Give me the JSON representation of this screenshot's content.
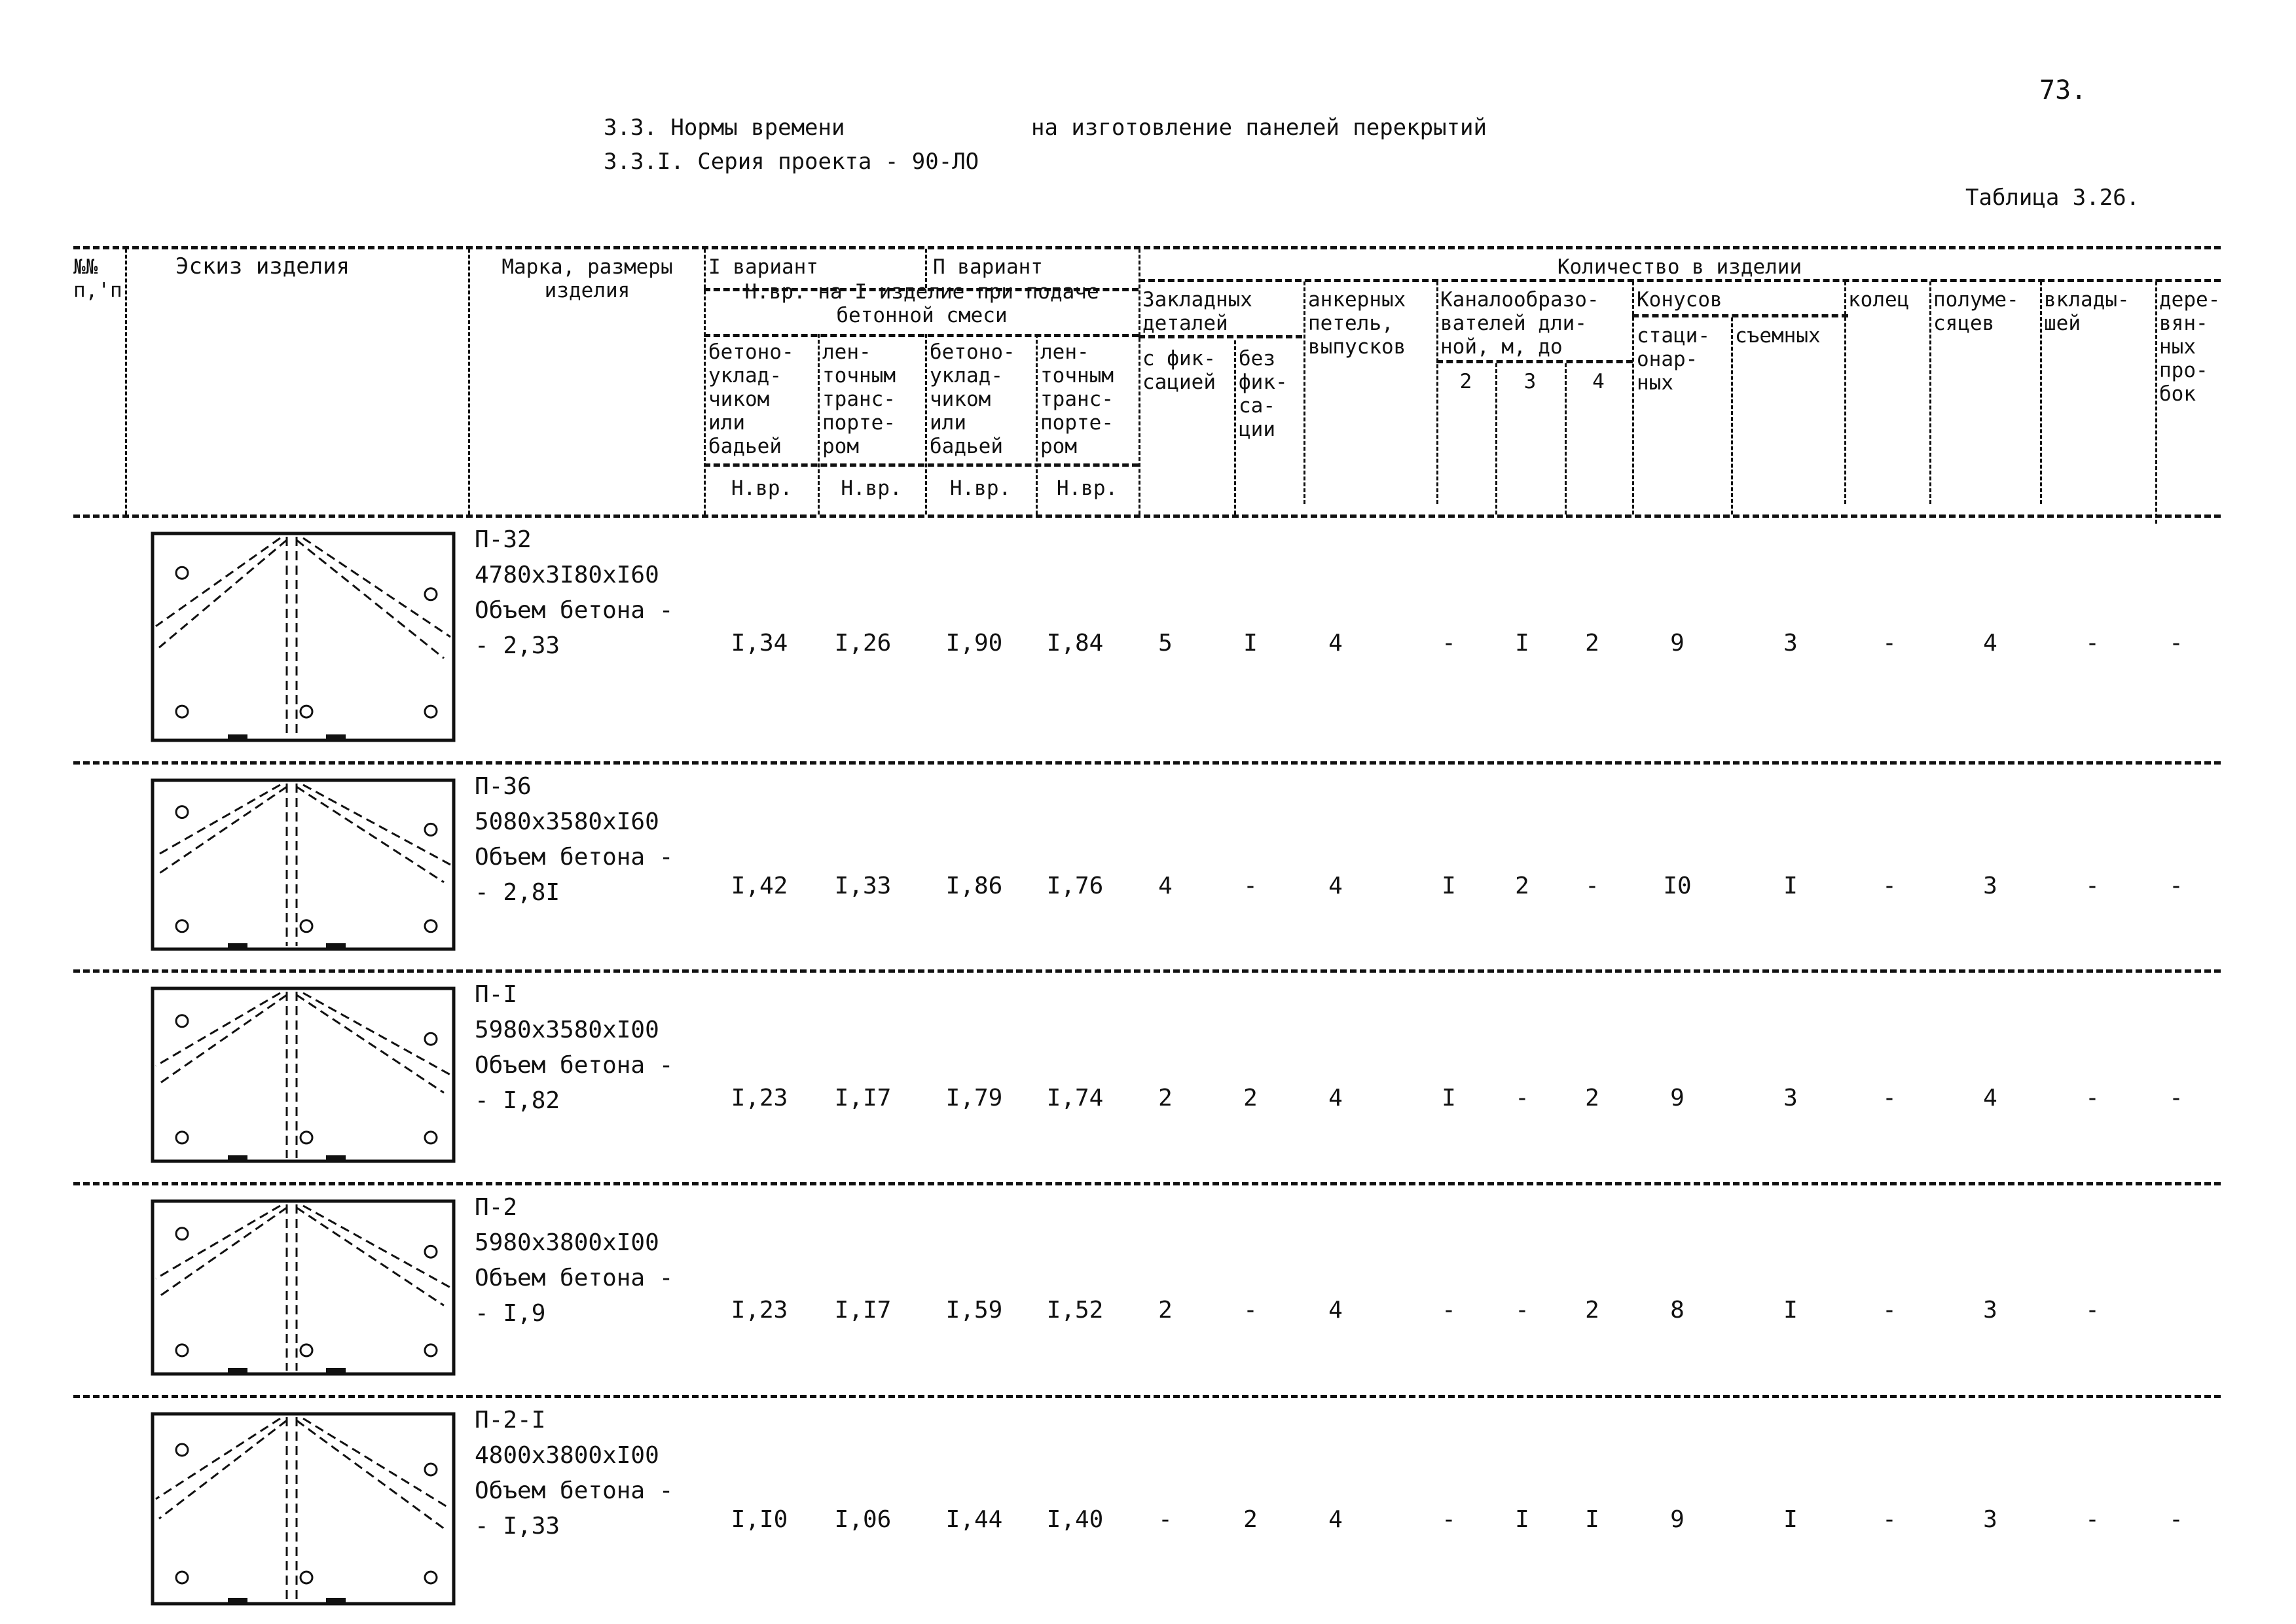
{
  "page_number": "73.",
  "heading": {
    "line1_left": "3.3. Нормы времени",
    "line1_right": "на изготовление панелей перекрытий",
    "line2": "3.3.I. Серия проекта - 90-ЛО"
  },
  "table_label": "Таблица 3.26.",
  "header": {
    "num": [
      "№№",
      "п,'п"
    ],
    "sketch": "Эскиз изделия",
    "mark": [
      "Марка, размеры",
      "изделия"
    ],
    "variant1": "I вариант",
    "variant2": "П вариант",
    "norm_caption": [
      "Н.вр. на I изделие при подаче",
      "бетонной смеси"
    ],
    "sub_cols": [
      [
        "бетоно-",
        "уклад-",
        "чиком",
        "или",
        "бадьей"
      ],
      [
        "лен-",
        "точным",
        "транс-",
        "порте-",
        "ром"
      ],
      [
        "бетоно-",
        "уклад-",
        "чиком",
        "или",
        "бадьей"
      ],
      [
        "лен-",
        "точным",
        "транс-",
        "порте-",
        "ром"
      ]
    ],
    "unit": "Н.вр.",
    "quantity": "Количество в изделии",
    "embedded": [
      "Закладных",
      "деталей"
    ],
    "embedded_fix": [
      "с фик-",
      "сацией"
    ],
    "embedded_nofix": [
      "без",
      "фик-",
      "са-",
      "ции"
    ],
    "anchor": [
      "анкерных",
      "петель,",
      "выпусков"
    ],
    "channel": [
      "Каналообразо-",
      "вателей дли-",
      "ной, м, до"
    ],
    "channel_cols": [
      "2",
      "3",
      "4"
    ],
    "cones": "Конусов",
    "cones_stat": [
      "стаци-",
      "онар-",
      "ных"
    ],
    "cones_rem": [
      "съемных"
    ],
    "rings": [
      "колец"
    ],
    "half": [
      "полуме-",
      "сяцев"
    ],
    "inserts": [
      "вклады-",
      "шей"
    ],
    "wooden": [
      "дере-",
      "вян-",
      "ных",
      "про-",
      "бок"
    ]
  },
  "rows": [
    {
      "mark": "П-32",
      "size": "4780x3I80xI60",
      "vol_label": "Объем бетона -",
      "vol": "- 2,33",
      "values": [
        "I,34",
        "I,26",
        "I,90",
        "I,84",
        "5",
        "I",
        "4",
        "-",
        "I",
        "2",
        "9",
        "3",
        "-",
        "4",
        "-",
        "-"
      ]
    },
    {
      "mark": "П-36",
      "size": "5080x3580xI60",
      "vol_label": "Объем бетона -",
      "vol": "- 2,8I",
      "values": [
        "I,42",
        "I,33",
        "I,86",
        "I,76",
        "4",
        "-",
        "4",
        "I",
        "2",
        "-",
        "I0",
        "I",
        "-",
        "3",
        "-",
        "-"
      ]
    },
    {
      "mark": "П-I",
      "size": "5980x3580xI00",
      "vol_label": "Объем бетона -",
      "vol": "- I,82",
      "values": [
        "I,23",
        "I,I7",
        "I,79",
        "I,74",
        "2",
        "2",
        "4",
        "I",
        "-",
        "2",
        "9",
        "3",
        "-",
        "4",
        "-",
        "-"
      ]
    },
    {
      "mark": "П-2",
      "size": "5980x3800xI00",
      "vol_label": "Объем бетона -",
      "vol": "- I,9",
      "values": [
        "I,23",
        "I,I7",
        "I,59",
        "I,52",
        "2",
        "-",
        "4",
        "-",
        "-",
        "2",
        "8",
        "I",
        "-",
        "3",
        "-",
        ""
      ]
    },
    {
      "mark": "П-2-I",
      "size": "4800x3800xI00",
      "vol_label": "Объем бетона -",
      "vol": "- I,33",
      "values": [
        "I,I0",
        "I,06",
        "I,44",
        "I,40",
        "-",
        "2",
        "4",
        "-",
        "I",
        "I",
        "9",
        "I",
        "-",
        "3",
        "-",
        "-"
      ]
    }
  ]
}
